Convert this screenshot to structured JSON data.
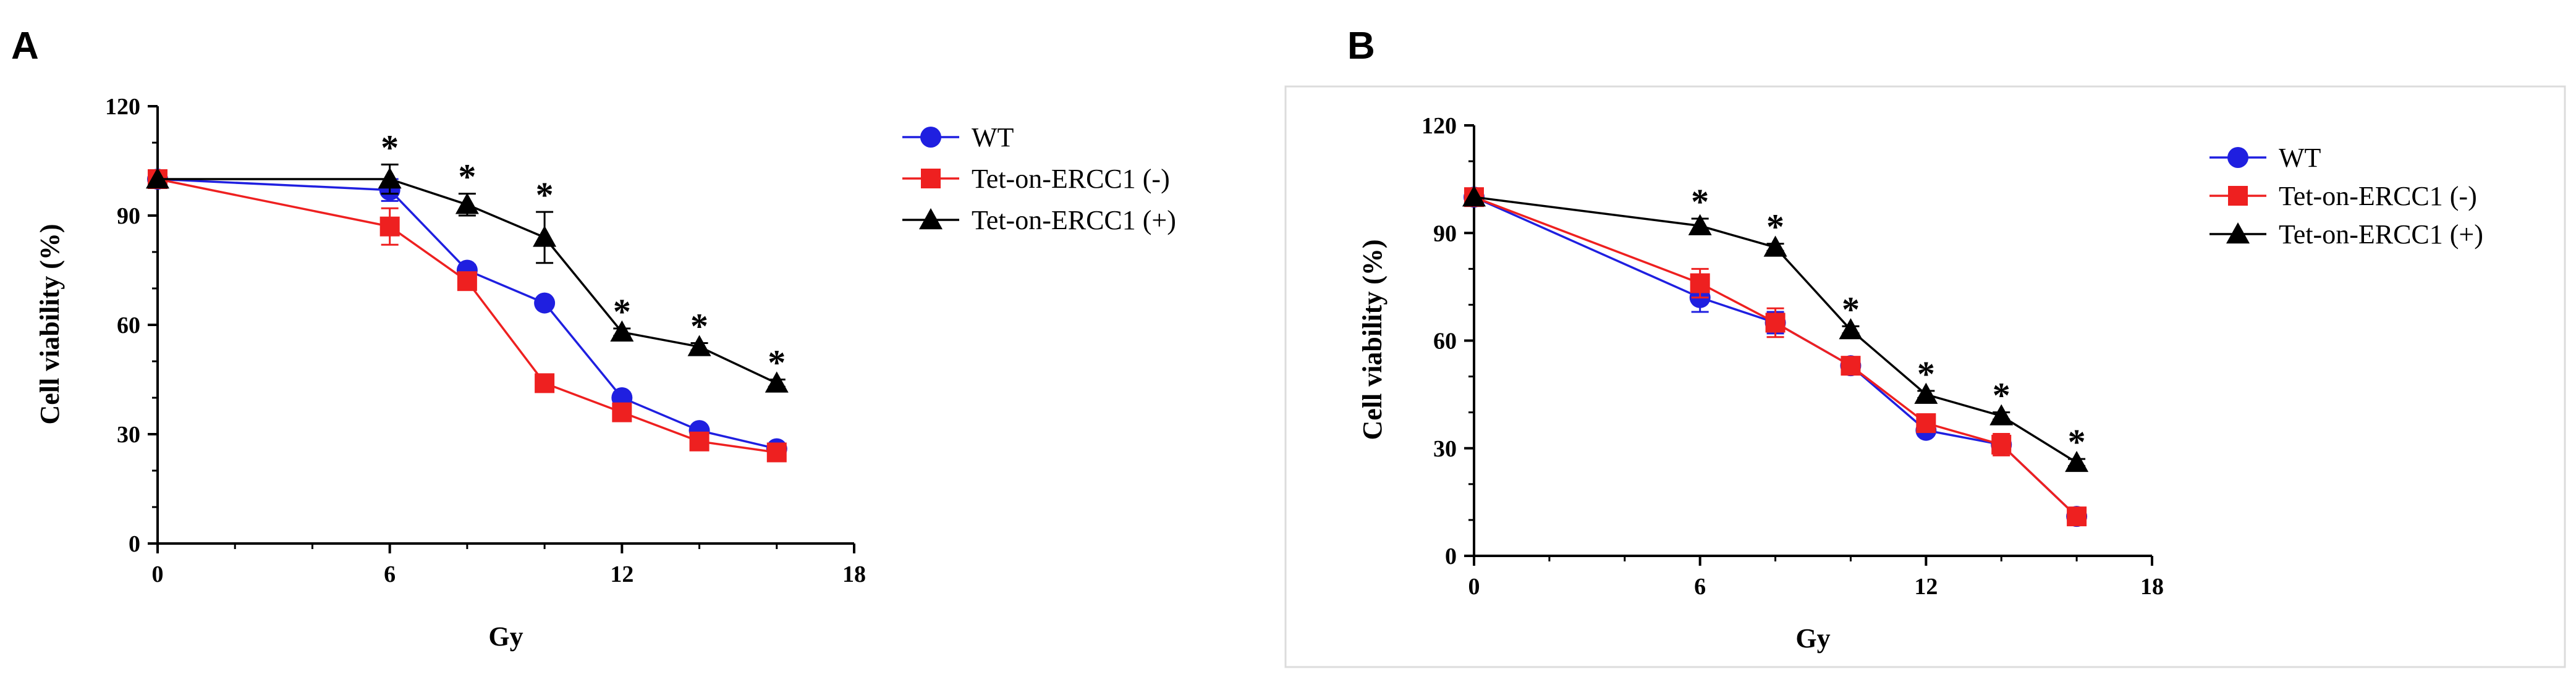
{
  "figure": {
    "panels": [
      "A",
      "B"
    ]
  },
  "chart_data": [
    {
      "panel": "A",
      "type": "line",
      "title": "",
      "xlabel": "Gy",
      "ylabel": "Cell viability (%)",
      "xlim": [
        0,
        18
      ],
      "ylim": [
        0,
        120
      ],
      "xticks": [
        0,
        6,
        12,
        18
      ],
      "yticks": [
        0,
        30,
        60,
        90,
        120
      ],
      "grid": false,
      "legend_position": "top-right",
      "x": [
        0,
        6,
        8,
        10,
        12,
        14,
        16
      ],
      "series": [
        {
          "name": "WT",
          "marker": "circle",
          "color": "#1f1fe0",
          "values": [
            100,
            97,
            75,
            66,
            40,
            31,
            26
          ],
          "errors": [
            0,
            3,
            1.5,
            1,
            1.5,
            1,
            1
          ]
        },
        {
          "name": "Tet-on-ERCC1 (-)",
          "marker": "square",
          "color": "#ee2020",
          "values": [
            100,
            87,
            72,
            44,
            36,
            28,
            25
          ],
          "errors": [
            0,
            5,
            2,
            1.5,
            1.5,
            1,
            1
          ]
        },
        {
          "name": "Tet-on-ERCC1 (+)",
          "marker": "triangle",
          "color": "#000000",
          "values": [
            100,
            100,
            93,
            84,
            58,
            54,
            44
          ],
          "errors": [
            0,
            4,
            3,
            7,
            1,
            1,
            1
          ]
        }
      ],
      "significance": {
        "symbol": "*",
        "x": [
          6,
          8,
          10,
          12,
          14,
          16
        ]
      }
    },
    {
      "panel": "B",
      "type": "line",
      "title": "",
      "xlabel": "Gy",
      "ylabel": "Cell viability (%)",
      "xlim": [
        0,
        18
      ],
      "ylim": [
        0,
        120
      ],
      "xticks": [
        0,
        6,
        12,
        18
      ],
      "yticks": [
        0,
        30,
        60,
        90,
        120
      ],
      "grid": false,
      "legend_position": "top-right",
      "x": [
        0,
        6,
        8,
        10,
        12,
        14,
        16
      ],
      "series": [
        {
          "name": "WT",
          "marker": "circle",
          "color": "#1f1fe0",
          "values": [
            100,
            72,
            65,
            53,
            35,
            31,
            11
          ],
          "errors": [
            0,
            4,
            3,
            2,
            1.5,
            2,
            1
          ]
        },
        {
          "name": "Tet-on-ERCC1 (-)",
          "marker": "square",
          "color": "#ee2020",
          "values": [
            100,
            76,
            65,
            53,
            37,
            31,
            11
          ],
          "errors": [
            0,
            4,
            4,
            2,
            2,
            3,
            1
          ]
        },
        {
          "name": "Tet-on-ERCC1 (+)",
          "marker": "triangle",
          "color": "#000000",
          "values": [
            100,
            92,
            86,
            63,
            45,
            39,
            26
          ],
          "errors": [
            0,
            2,
            1,
            1,
            1,
            1,
            1
          ]
        }
      ],
      "significance": {
        "symbol": "*",
        "x": [
          6,
          8,
          10,
          12,
          14,
          16
        ]
      }
    }
  ]
}
